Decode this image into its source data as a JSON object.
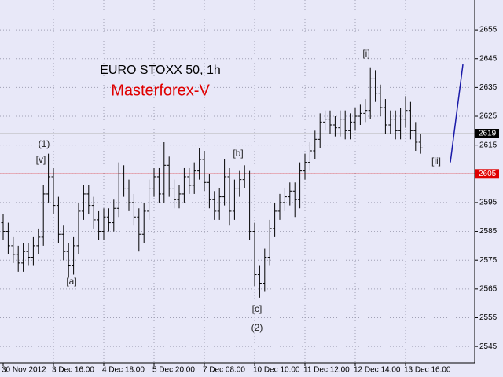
{
  "chart_data": {
    "type": "ohlc",
    "title": "EURO STOXX 50, 1h",
    "subtitle": "Masterforex-V",
    "categories": [
      "30 Nov 2012",
      null,
      null,
      null,
      null,
      null,
      null,
      null,
      null,
      null,
      "3 Dec 16:00",
      null,
      null,
      null,
      null,
      null,
      null,
      null,
      null,
      null,
      "4 Dec 18:00",
      null,
      null,
      null,
      null,
      null,
      null,
      null,
      null,
      null,
      "5 Dec 20:00",
      null,
      null,
      null,
      null,
      null,
      null,
      null,
      null,
      null,
      "7 Dec 08:00",
      null,
      null,
      null,
      null,
      null,
      null,
      null,
      null,
      null,
      "10 Dec 10:00",
      null,
      null,
      null,
      null,
      null,
      null,
      null,
      null,
      null,
      "11 Dec 12:00",
      null,
      null,
      null,
      null,
      null,
      null,
      null,
      null,
      null,
      "12 Dec 14:00",
      null,
      null,
      null,
      null,
      null,
      null,
      null,
      null,
      null,
      "13 Dec 16:00",
      null,
      null,
      null
    ],
    "open": [
      2588,
      2585,
      2580,
      2577,
      2574,
      2578,
      2576,
      2580,
      2583,
      2598,
      2604,
      2594,
      2584,
      2578,
      2573,
      2580,
      2592,
      2598,
      2594,
      2589,
      2585,
      2590,
      2588,
      2593,
      2605,
      2600,
      2595,
      2590,
      2584,
      2592,
      2600,
      2604,
      2598,
      2608,
      2600,
      2596,
      2598,
      2604,
      2601,
      2606,
      2610,
      2602,
      2596,
      2592,
      2597,
      2604,
      2592,
      2600,
      2603,
      2605,
      2585,
      2570,
      2567,
      2576,
      2586,
      2592,
      2595,
      2597,
      2599,
      2596,
      2606,
      2609,
      2613,
      2617,
      2623,
      2624,
      2622,
      2621,
      2624,
      2620,
      2623,
      2625,
      2626,
      2627,
      2638,
      2633,
      2628,
      2622,
      2624,
      2620,
      2624,
      2627,
      2620,
      2616
    ],
    "high": [
      2591,
      2588,
      2583,
      2580,
      2581,
      2581,
      2583,
      2586,
      2601,
      2612,
      2607,
      2597,
      2587,
      2581,
      2583,
      2595,
      2601,
      2601,
      2597,
      2592,
      2593,
      2593,
      2596,
      2609,
      2608,
      2603,
      2598,
      2593,
      2595,
      2603,
      2607,
      2607,
      2616,
      2611,
      2603,
      2601,
      2607,
      2607,
      2609,
      2614,
      2613,
      2605,
      2599,
      2600,
      2610,
      2607,
      2603,
      2606,
      2608,
      2606,
      2588,
      2573,
      2579,
      2589,
      2595,
      2598,
      2600,
      2602,
      2602,
      2609,
      2612,
      2616,
      2620,
      2626,
      2627,
      2627,
      2625,
      2627,
      2627,
      2626,
      2628,
      2629,
      2631,
      2642,
      2641,
      2636,
      2631,
      2627,
      2627,
      2628,
      2632,
      2630,
      2623,
      2619
    ],
    "low": [
      2582,
      2577,
      2574,
      2571,
      2571,
      2573,
      2573,
      2577,
      2580,
      2595,
      2591,
      2581,
      2575,
      2569,
      2570,
      2577,
      2589,
      2591,
      2586,
      2582,
      2582,
      2585,
      2585,
      2590,
      2597,
      2592,
      2587,
      2578,
      2581,
      2589,
      2597,
      2595,
      2595,
      2597,
      2593,
      2593,
      2595,
      2598,
      2598,
      2603,
      2599,
      2593,
      2589,
      2589,
      2594,
      2587,
      2589,
      2597,
      2600,
      2582,
      2566,
      2562,
      2564,
      2573,
      2583,
      2589,
      2592,
      2594,
      2590,
      2593,
      2603,
      2606,
      2610,
      2614,
      2620,
      2619,
      2618,
      2618,
      2617,
      2617,
      2620,
      2622,
      2623,
      2624,
      2630,
      2625,
      2619,
      2619,
      2617,
      2617,
      2621,
      2617,
      2613,
      2612
    ],
    "close": [
      2585,
      2580,
      2577,
      2574,
      2578,
      2576,
      2580,
      2583,
      2598,
      2604,
      2594,
      2584,
      2578,
      2573,
      2580,
      2592,
      2598,
      2594,
      2589,
      2585,
      2590,
      2588,
      2593,
      2605,
      2600,
      2595,
      2590,
      2584,
      2592,
      2600,
      2604,
      2598,
      2608,
      2600,
      2596,
      2598,
      2604,
      2601,
      2606,
      2610,
      2602,
      2596,
      2592,
      2597,
      2604,
      2592,
      2600,
      2603,
      2605,
      2585,
      2570,
      2567,
      2576,
      2586,
      2592,
      2595,
      2597,
      2599,
      2596,
      2606,
      2609,
      2613,
      2617,
      2623,
      2624,
      2622,
      2621,
      2624,
      2620,
      2623,
      2625,
      2626,
      2627,
      2638,
      2633,
      2628,
      2622,
      2624,
      2620,
      2624,
      2627,
      2620,
      2616,
      2614
    ],
    "color": "#000000",
    "ylim": [
      2539.3,
      2665.4
    ],
    "yticks": [
      2545,
      2555,
      2565,
      2575,
      2585,
      2595,
      2605,
      2615,
      2625,
      2635,
      2645,
      2655
    ],
    "grid": true,
    "price_lines": [
      {
        "value": 2619,
        "color": "#b4b4b4",
        "label_color": "#000000"
      },
      {
        "value": 2605,
        "color": "#e00000",
        "label_color": "#e00000"
      }
    ],
    "projection": {
      "color": "#1a1aa8",
      "values": [
        2609,
        2643
      ]
    },
    "annotations": [
      "(1)",
      "[v]",
      "[a]",
      "[b]",
      "[c]",
      "(2)",
      "[i]",
      "[ii]"
    ]
  }
}
